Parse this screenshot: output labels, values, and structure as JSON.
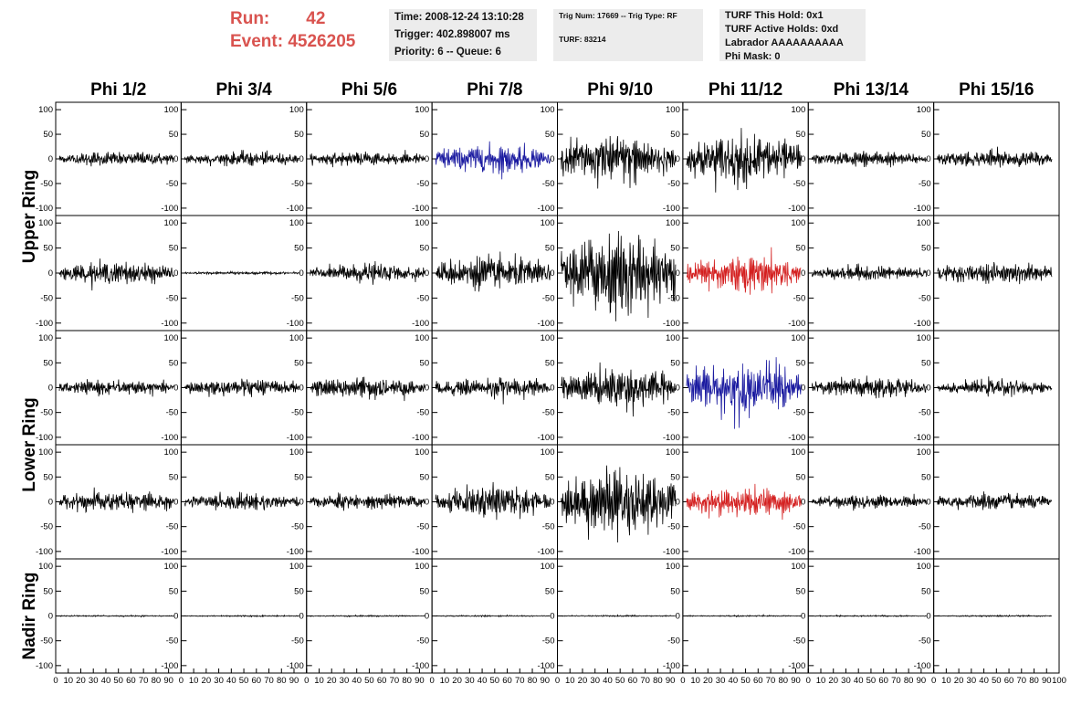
{
  "header": {
    "run_label": "Run:",
    "run_value": "42",
    "event_label": "Event:",
    "event_value": "4526205",
    "time_line": "Time: 2008-12-24 13:10:28",
    "trigger_line": "Trigger: 402.898007 ms",
    "priority_line": "Priority: 6 -- Queue: 6",
    "trig_num_line": "Trig Num: 17669 -- Trig Type: RF",
    "turf_line": "TURF: 83214",
    "turf_this_hold": "TURF This Hold: 0x1",
    "turf_active_holds": "TURF Active Holds: 0xd",
    "labrador": "Labrador AAAAAAAAAA",
    "phi_mask": "Phi Mask: 0"
  },
  "chart_data": {
    "type": "line",
    "columns": [
      "Phi 1/2",
      "Phi 3/4",
      "Phi 5/6",
      "Phi 7/8",
      "Phi 9/10",
      "Phi 11/12",
      "Phi 13/14",
      "Phi 15/16"
    ],
    "ring_labels": [
      {
        "text": "Upper Ring",
        "rows": [
          0,
          1
        ]
      },
      {
        "text": "Lower Ring",
        "rows": [
          2,
          3
        ]
      },
      {
        "text": "Nadir Ring",
        "rows": [
          4
        ]
      }
    ],
    "ylim": [
      -115,
      115
    ],
    "yticks": [
      -100,
      -50,
      0,
      50,
      100
    ],
    "xlim": [
      0,
      100
    ],
    "x_tick_labels": [
      "0",
      "10",
      "20",
      "30",
      "40",
      "50",
      "60",
      "70",
      "80",
      "90",
      "100"
    ],
    "colors": {
      "normal": "#000000",
      "blue": "#1a1aa0",
      "red": "#d42020"
    },
    "rows": [
      {
        "amplitudes": [
          10,
          10,
          10,
          20,
          35,
          35,
          10,
          12
        ],
        "colors": [
          "normal",
          "normal",
          "normal",
          "blue",
          "normal",
          "normal",
          "normal",
          "normal"
        ]
      },
      {
        "amplitudes": [
          15,
          2,
          12,
          22,
          55,
          28,
          10,
          15
        ],
        "colors": [
          "normal",
          "normal",
          "normal",
          "normal",
          "normal",
          "red",
          "normal",
          "normal"
        ]
      },
      {
        "amplitudes": [
          10,
          12,
          15,
          15,
          28,
          40,
          15,
          10
        ],
        "colors": [
          "normal",
          "normal",
          "normal",
          "normal",
          "normal",
          "blue",
          "normal",
          "normal"
        ]
      },
      {
        "amplitudes": [
          15,
          12,
          12,
          22,
          45,
          22,
          10,
          12
        ],
        "colors": [
          "normal",
          "normal",
          "normal",
          "normal",
          "normal",
          "red",
          "normal",
          "normal"
        ]
      },
      {
        "amplitudes": [
          1,
          1,
          1,
          1,
          1,
          1,
          1,
          1
        ],
        "colors": [
          "normal",
          "normal",
          "normal",
          "normal",
          "normal",
          "normal",
          "normal",
          "normal"
        ]
      }
    ]
  }
}
